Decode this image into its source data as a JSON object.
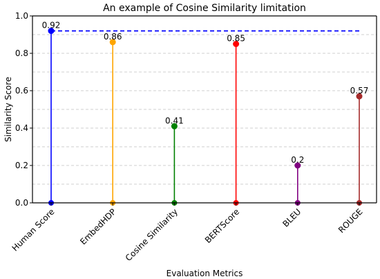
{
  "chart_data": {
    "type": "lollipop",
    "title": "An example of Cosine Similarity limitation",
    "xlabel": "Evaluation Metrics",
    "ylabel": "Similarity Score",
    "ylim": [
      0,
      1
    ],
    "y_ticks": [
      "0.0",
      "0.2",
      "0.4",
      "0.6",
      "0.8",
      "1.0"
    ],
    "y_tick_values": [
      0,
      0.2,
      0.4,
      0.6,
      0.8,
      1.0
    ],
    "categories": [
      "Human Score",
      "EmbedHDP",
      "Cosine Similarity",
      "BERTScore",
      "BLEU",
      "ROUGE"
    ],
    "values": [
      0.92,
      0.86,
      0.41,
      0.85,
      0.2,
      0.57
    ],
    "value_labels": [
      "0.92",
      "0.86",
      "0.41",
      "0.85",
      "0.2",
      "0.57"
    ],
    "colors": [
      "#0000ff",
      "#ffa500",
      "#008000",
      "#ff0000",
      "#800080",
      "#a52a2a"
    ],
    "reference_line": {
      "value": 0.92,
      "color": "#0000ff",
      "style": "dashed"
    },
    "grid": "y-dashed",
    "x_tick_rotation": 45
  }
}
